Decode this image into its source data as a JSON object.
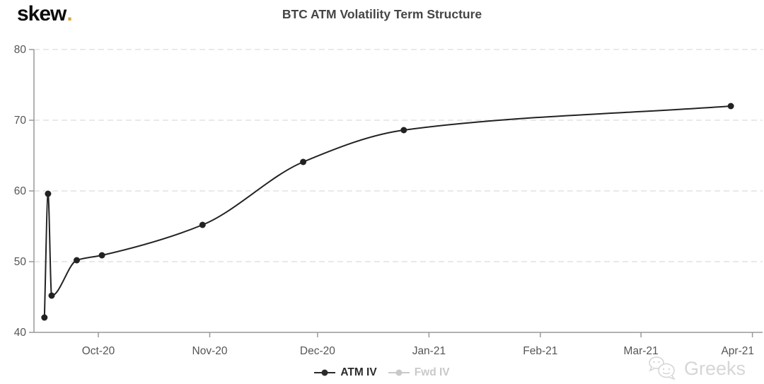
{
  "logo": {
    "text": "skew",
    "dot": ".",
    "dot_color": "#d8a73e"
  },
  "title": "BTC ATM Volatility Term Structure",
  "watermark": {
    "text": "Greeks"
  },
  "legend": {
    "items": [
      {
        "label": "ATM IV",
        "color": "#2b2b2b",
        "active": true
      },
      {
        "label": "Fwd IV",
        "color": "#c9c9c9",
        "active": false
      }
    ]
  },
  "colors": {
    "grid": "#e2e2e2",
    "axis": "#999999",
    "tick_label": "#555555",
    "series": "#222222",
    "title": "#454545"
  },
  "chart_data": {
    "type": "line",
    "title": "BTC ATM Volatility Term Structure",
    "xlabel": "",
    "ylabel": "",
    "ylim": [
      40,
      80
    ],
    "y_ticks": [
      40,
      50,
      60,
      70,
      80
    ],
    "grid": "horizontal-dashed",
    "legend_position": "bottom-center",
    "x_ticks": [
      {
        "label": "Oct-20",
        "date": "2020-10-01"
      },
      {
        "label": "Nov-20",
        "date": "2020-11-01"
      },
      {
        "label": "Dec-20",
        "date": "2020-12-01"
      },
      {
        "label": "Jan-21",
        "date": "2021-01-01"
      },
      {
        "label": "Feb-21",
        "date": "2021-02-01"
      },
      {
        "label": "Mar-21",
        "date": "2021-03-01"
      },
      {
        "label": "Apr-21",
        "date": "2021-04-01"
      }
    ],
    "series": [
      {
        "name": "ATM IV",
        "color": "#222222",
        "visible": true,
        "points": [
          {
            "date": "2020-09-16",
            "value": 42.1
          },
          {
            "date": "2020-09-17",
            "value": 59.6
          },
          {
            "date": "2020-09-18",
            "value": 45.2
          },
          {
            "date": "2020-09-25",
            "value": 50.2
          },
          {
            "date": "2020-10-02",
            "value": 50.9
          },
          {
            "date": "2020-10-30",
            "value": 55.2
          },
          {
            "date": "2020-11-27",
            "value": 64.1
          },
          {
            "date": "2020-12-25",
            "value": 68.6
          },
          {
            "date": "2021-03-26",
            "value": 72.0
          }
        ]
      },
      {
        "name": "Fwd IV",
        "color": "#cccccc",
        "visible": false,
        "points": []
      }
    ]
  }
}
